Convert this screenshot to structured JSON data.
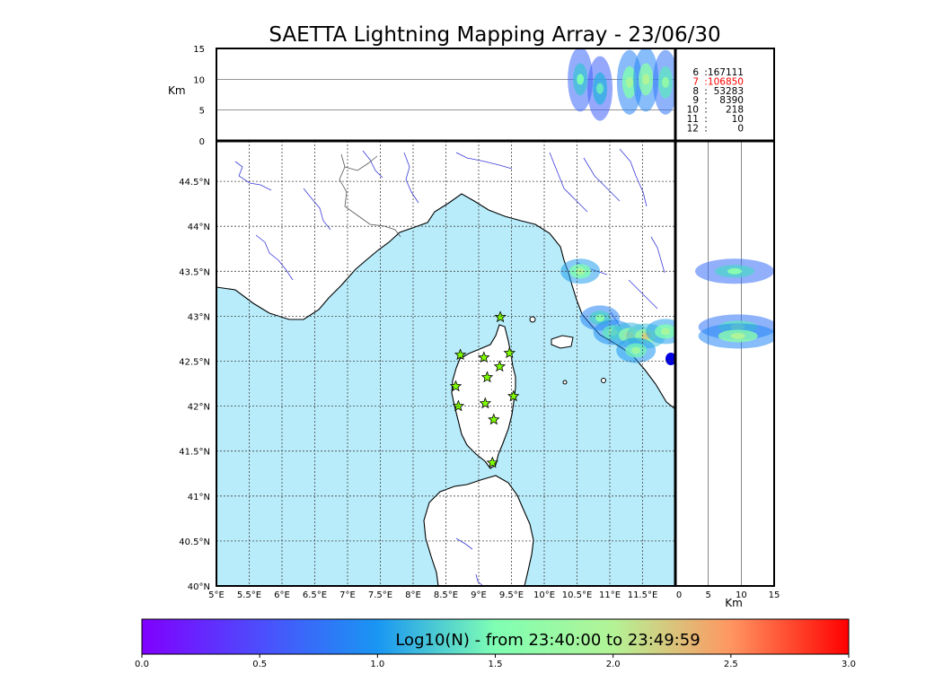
{
  "chart_data": [
    {
      "type": "scatter",
      "panel": "map",
      "title": "SAETTA Lightning Mapping Array - 23/06/30",
      "x_ticks": [
        "5°E",
        "5.5°E",
        "6°E",
        "6.5°E",
        "7°E",
        "7.5°E",
        "8°E",
        "8.5°E",
        "9°E",
        "9.5°E",
        "10°E",
        "10.5°E",
        "11°E",
        "11.5°E"
      ],
      "y_ticks": [
        "40°N",
        "40.5°N",
        "41°N",
        "41.5°N",
        "42°N",
        "42.5°N",
        "43°N",
        "43.5°N",
        "44°N",
        "44.5°N"
      ],
      "xlim": [
        5,
        12
      ],
      "ylim": [
        40,
        44.95
      ],
      "grid": true,
      "stations": [
        {
          "lon": 8.72,
          "lat": 42.57
        },
        {
          "lon": 9.08,
          "lat": 42.54
        },
        {
          "lon": 9.33,
          "lat": 42.99
        },
        {
          "lon": 9.47,
          "lat": 42.59
        },
        {
          "lon": 9.32,
          "lat": 42.44
        },
        {
          "lon": 9.13,
          "lat": 42.32
        },
        {
          "lon": 8.65,
          "lat": 42.22
        },
        {
          "lon": 8.69,
          "lat": 42.0
        },
        {
          "lon": 9.1,
          "lat": 42.03
        },
        {
          "lon": 9.53,
          "lat": 42.11
        },
        {
          "lon": 9.23,
          "lat": 41.85
        },
        {
          "lon": 9.21,
          "lat": 41.37
        }
      ],
      "lightning_clusters": [
        {
          "lon": 10.55,
          "lat": 43.5,
          "level": 1.9
        },
        {
          "lon": 10.85,
          "lat": 42.98,
          "level": 1.6
        },
        {
          "lon": 11.05,
          "lat": 42.82,
          "level": 1.7
        },
        {
          "lon": 11.3,
          "lat": 42.79,
          "level": 2.1
        },
        {
          "lon": 11.55,
          "lat": 42.78,
          "level": 2.2
        },
        {
          "lon": 11.85,
          "lat": 42.83,
          "level": 1.9
        },
        {
          "lon": 11.4,
          "lat": 42.62,
          "level": 1.8
        }
      ]
    },
    {
      "type": "scatter",
      "panel": "lon-altitude",
      "ylabel": "Km",
      "y_ticks": [
        "0",
        "5",
        "10",
        "15"
      ],
      "ylim": [
        0,
        15
      ],
      "clusters": [
        {
          "lon": 10.55,
          "alt": 10.0,
          "level": 1.5
        },
        {
          "lon": 10.85,
          "alt": 8.5,
          "level": 1.4
        },
        {
          "lon": 11.3,
          "alt": 9.5,
          "level": 1.9
        },
        {
          "lon": 11.55,
          "alt": 10.0,
          "level": 2.0
        },
        {
          "lon": 11.85,
          "alt": 9.5,
          "level": 1.7
        }
      ]
    },
    {
      "type": "scatter",
      "panel": "altitude-lat",
      "xlabel": "Km",
      "x_ticks": [
        "0",
        "5",
        "10",
        "15"
      ],
      "xlim": [
        0,
        15
      ],
      "clusters": [
        {
          "alt": 9.0,
          "lat": 43.5,
          "level": 1.6
        },
        {
          "alt": 9.5,
          "lat": 42.88,
          "level": 1.7
        },
        {
          "alt": 9.5,
          "lat": 42.78,
          "level": 2.0
        }
      ]
    },
    {
      "type": "table",
      "panel": "station-counts",
      "rows": [
        {
          "stations": "6",
          "count": "167111",
          "highlight": false
        },
        {
          "stations": "7",
          "count": "106850",
          "highlight": true
        },
        {
          "stations": "8",
          "count": "53283",
          "highlight": false
        },
        {
          "stations": "9",
          "count": "8390",
          "highlight": false
        },
        {
          "stations": "10",
          "count": "218",
          "highlight": false
        },
        {
          "stations": "11",
          "count": "10",
          "highlight": false
        },
        {
          "stations": "12",
          "count": "0",
          "highlight": false
        }
      ],
      "separator": ":",
      "highlight_color": "#ff0000"
    },
    {
      "type": "heatmap",
      "panel": "colorbar",
      "label": "Log10(N) - from 23:40:00 to 23:49:59",
      "ticks": [
        "0.0",
        "0.5",
        "1.0",
        "1.5",
        "2.0",
        "2.5",
        "3.0"
      ],
      "range": [
        0,
        3
      ],
      "colormap": "rainbow"
    }
  ],
  "colors": {
    "sea": "#b8ecfa",
    "rivers": "#3b3bd9",
    "star_fill": "#7fff00",
    "grid": "#444444"
  }
}
